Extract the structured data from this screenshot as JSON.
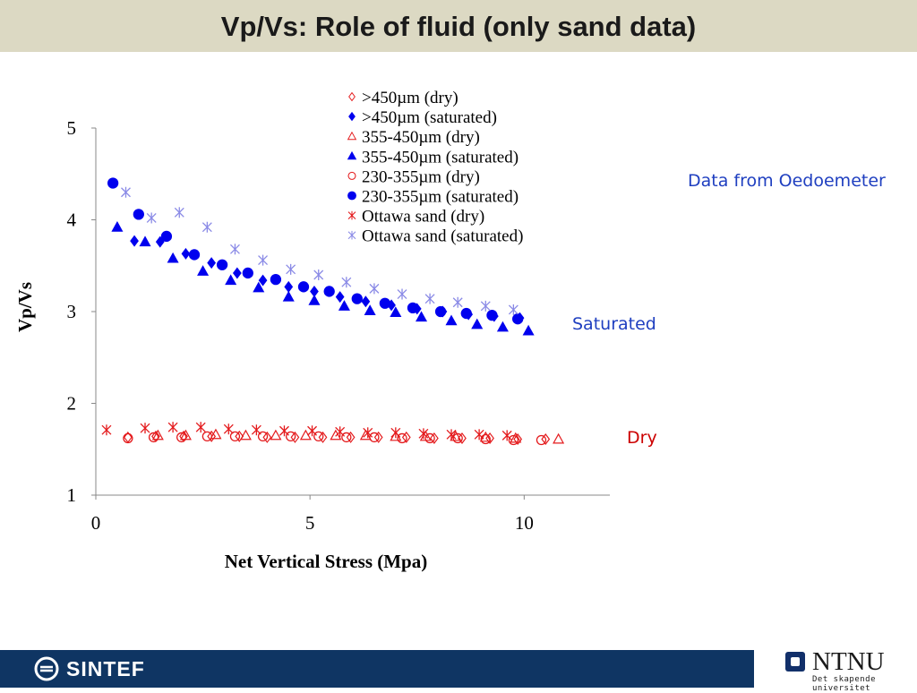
{
  "slide": {
    "title": "Vp/Vs: Role of fluid (only sand data)"
  },
  "annotations": {
    "data_source": "Data from Oedoemeter",
    "saturated": "Saturated",
    "dry": "Dry"
  },
  "colors": {
    "red": "#e41a1c",
    "blue": "#0000ee",
    "light_blue": "#8a8ae6",
    "annotation_blue": "#1f3fc0",
    "annotation_red": "#cc0000",
    "title_bar": "#dcd9c3",
    "footer": "#0f3563"
  },
  "footer": {
    "left_logo_text": "SINTEF",
    "right_logo_text": "NTNU",
    "right_logo_sub": "Det skapende universitet"
  },
  "chart_data": {
    "type": "scatter",
    "title": "",
    "xlabel": "Net Vertical Stress (Mpa)",
    "ylabel": "Vp/Vs",
    "xlim": [
      0,
      12
    ],
    "ylim": [
      1,
      5
    ],
    "xticks": [
      "0",
      "5",
      "10"
    ],
    "yticks": [
      "1",
      "2",
      "3",
      "4",
      "5"
    ],
    "grid": false,
    "legend_position": "top-center",
    "series": [
      {
        "name": ">450µm (dry)",
        "marker": "diamond-open",
        "color": "#e41a1c",
        "x": [
          0.75,
          1.4,
          2.05,
          2.7,
          3.35,
          4.0,
          4.65,
          5.3,
          5.95,
          6.6,
          7.25,
          7.9,
          8.55,
          9.2,
          9.85,
          10.5
        ],
        "y": [
          1.63,
          1.64,
          1.64,
          1.64,
          1.64,
          1.63,
          1.63,
          1.63,
          1.63,
          1.63,
          1.63,
          1.62,
          1.62,
          1.62,
          1.61,
          1.61
        ]
      },
      {
        "name": ">450µm (saturated)",
        "marker": "diamond",
        "color": "#0000ee",
        "x": [
          0.9,
          1.5,
          2.1,
          2.7,
          3.3,
          3.9,
          4.5,
          5.1,
          5.7,
          6.3,
          6.9,
          7.5,
          8.1,
          8.7,
          9.3,
          9.9
        ],
        "y": [
          3.77,
          3.76,
          3.63,
          3.53,
          3.42,
          3.34,
          3.27,
          3.22,
          3.16,
          3.11,
          3.07,
          3.03,
          3.0,
          2.97,
          2.95,
          2.93
        ]
      },
      {
        "name": "355-450µm (dry)",
        "marker": "triangle-open",
        "color": "#e41a1c",
        "x": [
          1.45,
          2.1,
          2.8,
          3.5,
          4.2,
          4.9,
          5.6,
          6.3,
          7.0,
          7.7,
          8.4,
          9.1,
          9.8,
          10.8
        ],
        "y": [
          1.65,
          1.65,
          1.66,
          1.65,
          1.65,
          1.65,
          1.65,
          1.65,
          1.64,
          1.64,
          1.64,
          1.63,
          1.62,
          1.61
        ]
      },
      {
        "name": "355-450µm (saturated)",
        "marker": "triangle",
        "color": "#0000ee",
        "x": [
          0.5,
          1.15,
          1.8,
          2.5,
          3.15,
          3.8,
          4.5,
          5.1,
          5.8,
          6.4,
          7.0,
          7.6,
          8.3,
          8.9,
          9.5,
          10.1
        ],
        "y": [
          3.92,
          3.76,
          3.58,
          3.44,
          3.34,
          3.26,
          3.16,
          3.12,
          3.06,
          3.01,
          2.99,
          2.94,
          2.9,
          2.86,
          2.83,
          2.79
        ]
      },
      {
        "name": "230-355µm (dry)",
        "marker": "circle-open",
        "color": "#e41a1c",
        "x": [
          0.75,
          1.35,
          2.0,
          2.6,
          3.25,
          3.9,
          4.55,
          5.2,
          5.85,
          6.5,
          7.15,
          7.8,
          8.45,
          9.1,
          9.75,
          10.4
        ],
        "y": [
          1.62,
          1.63,
          1.63,
          1.64,
          1.64,
          1.64,
          1.64,
          1.64,
          1.63,
          1.63,
          1.62,
          1.62,
          1.62,
          1.61,
          1.6,
          1.6
        ]
      },
      {
        "name": "230-355µm (saturated)",
        "marker": "circle",
        "color": "#0000ee",
        "x": [
          0.4,
          1.0,
          1.65,
          2.3,
          2.95,
          3.55,
          4.2,
          4.85,
          5.45,
          6.1,
          6.75,
          7.4,
          8.05,
          8.65,
          9.25,
          9.85
        ],
        "y": [
          4.4,
          4.06,
          3.82,
          3.62,
          3.51,
          3.42,
          3.35,
          3.27,
          3.22,
          3.14,
          3.09,
          3.04,
          3.0,
          2.98,
          2.96,
          2.92
        ]
      },
      {
        "name": "Ottawa sand (dry)",
        "marker": "asterisk",
        "color": "#e41a1c",
        "x": [
          0.25,
          1.15,
          1.8,
          2.45,
          3.1,
          3.75,
          4.4,
          5.05,
          5.7,
          6.35,
          7.0,
          7.65,
          8.3,
          8.95,
          9.6
        ],
        "y": [
          1.71,
          1.73,
          1.74,
          1.74,
          1.72,
          1.71,
          1.7,
          1.7,
          1.69,
          1.68,
          1.68,
          1.67,
          1.66,
          1.66,
          1.65
        ]
      },
      {
        "name": "Ottawa sand (saturated)",
        "marker": "asterisk",
        "color": "#8a8ae6",
        "x": [
          0.7,
          1.3,
          1.95,
          2.6,
          3.25,
          3.9,
          4.55,
          5.2,
          5.85,
          6.5,
          7.15,
          7.8,
          8.45,
          9.1,
          9.75
        ],
        "y": [
          4.3,
          4.02,
          4.08,
          3.92,
          3.68,
          3.56,
          3.46,
          3.4,
          3.32,
          3.25,
          3.19,
          3.14,
          3.1,
          3.06,
          3.02
        ]
      }
    ]
  }
}
